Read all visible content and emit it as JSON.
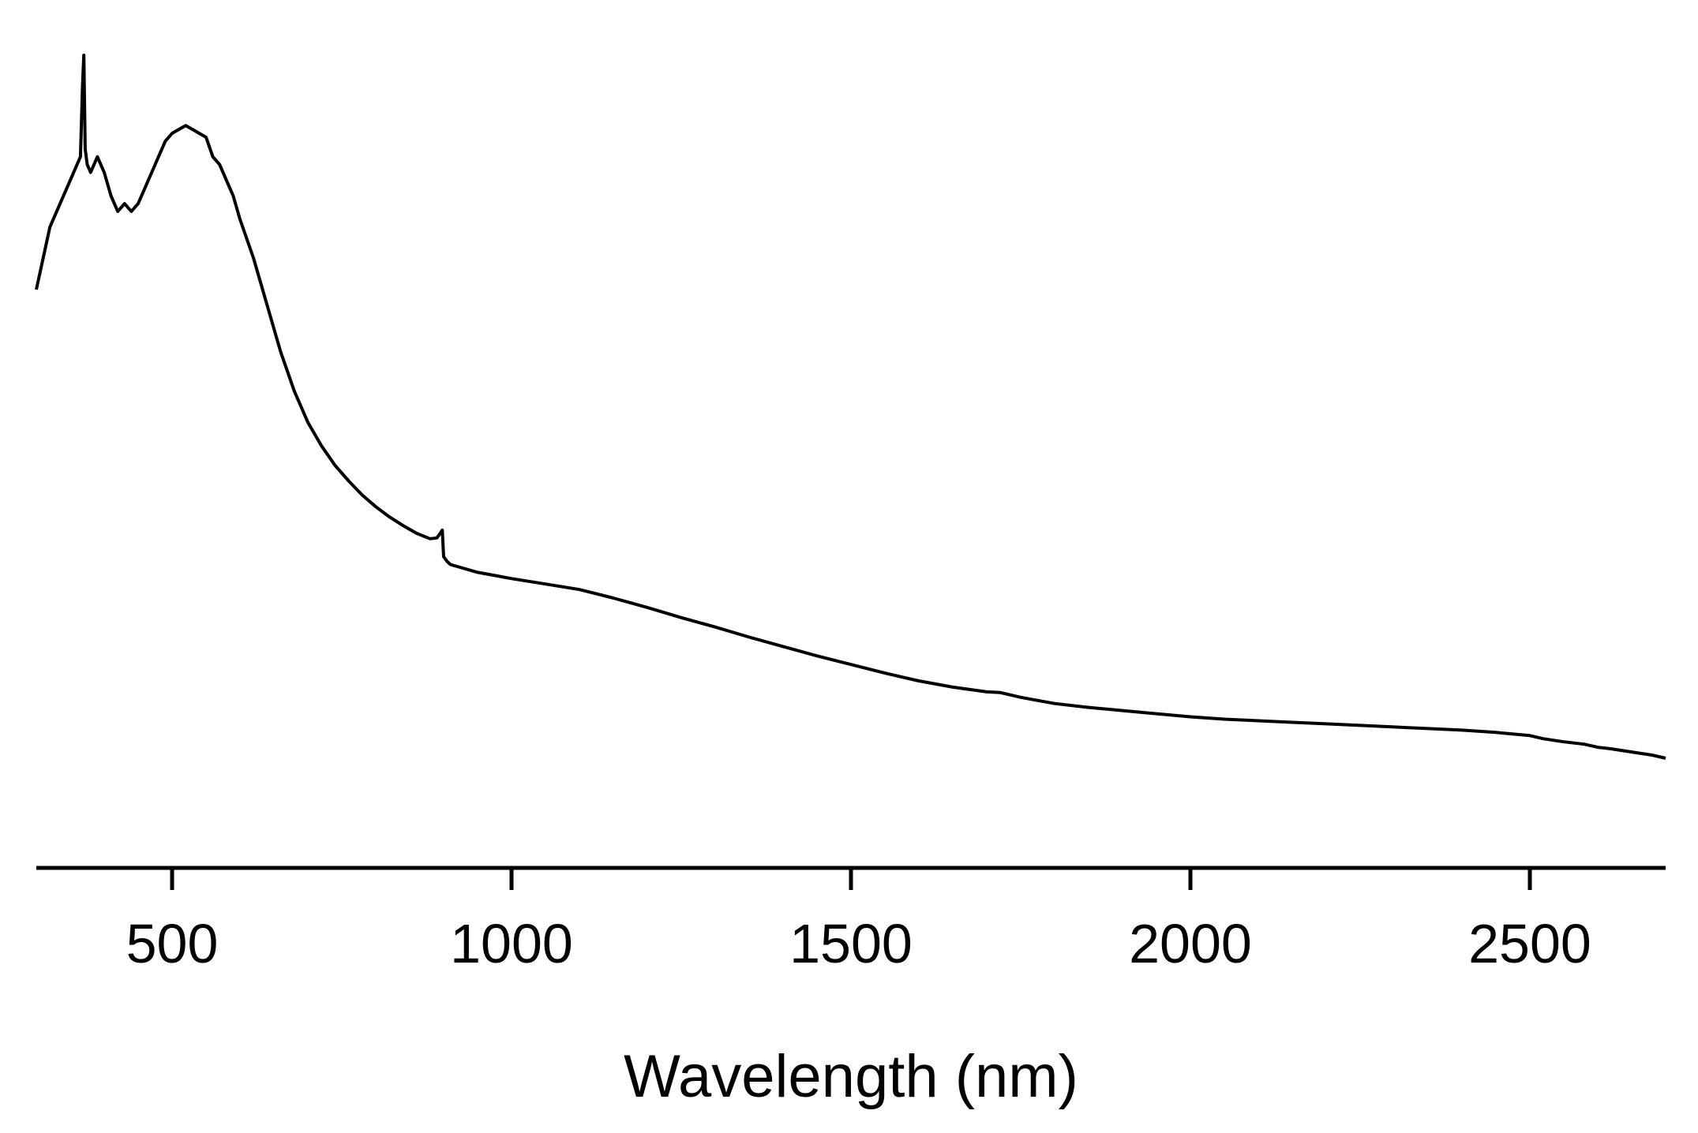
{
  "chart_data": {
    "type": "line",
    "title": "",
    "xlabel": "Wavelength (nm)",
    "ylabel": "",
    "xlim": [
      300,
      2700
    ],
    "ylim": [
      0,
      1
    ],
    "grid": false,
    "legend": "none",
    "x_ticks": [
      500,
      1000,
      1500,
      2000,
      2500
    ],
    "x_tick_labels": [
      "500",
      "1000",
      "1500",
      "2000",
      "2500"
    ],
    "y_axis_visible": false,
    "line_color": "#000000",
    "series": [
      {
        "x": [
          300,
          310,
          320,
          330,
          340,
          350,
          360,
          365,
          368,
          370,
          372,
          375,
          380,
          390,
          400,
          410,
          420,
          430,
          440,
          450,
          460,
          470,
          480,
          490,
          500,
          510,
          520,
          530,
          540,
          550,
          560,
          570,
          580,
          590,
          600,
          620,
          640,
          660,
          680,
          700,
          720,
          740,
          760,
          780,
          800,
          820,
          840,
          860,
          880,
          890,
          895,
          898,
          900,
          905,
          910,
          950,
          1000,
          1050,
          1100,
          1150,
          1200,
          1250,
          1300,
          1350,
          1400,
          1450,
          1500,
          1550,
          1600,
          1650,
          1700,
          1720,
          1750,
          1800,
          1850,
          1900,
          1950,
          2000,
          2050,
          2100,
          2150,
          2200,
          2250,
          2300,
          2350,
          2400,
          2450,
          2500,
          2520,
          2550,
          2580,
          2600,
          2620,
          2650,
          2680,
          2700
        ],
        "y": [
          0.7,
          0.74,
          0.78,
          0.8,
          0.82,
          0.84,
          0.86,
          0.87,
          0.96,
          1.0,
          0.88,
          0.86,
          0.85,
          0.87,
          0.85,
          0.82,
          0.8,
          0.81,
          0.8,
          0.81,
          0.83,
          0.85,
          0.87,
          0.89,
          0.9,
          0.905,
          0.91,
          0.905,
          0.9,
          0.895,
          0.87,
          0.86,
          0.84,
          0.82,
          0.79,
          0.74,
          0.68,
          0.62,
          0.57,
          0.53,
          0.5,
          0.475,
          0.455,
          0.437,
          0.422,
          0.409,
          0.398,
          0.388,
          0.381,
          0.382,
          0.388,
          0.392,
          0.358,
          0.352,
          0.348,
          0.338,
          0.33,
          0.323,
          0.316,
          0.305,
          0.293,
          0.28,
          0.268,
          0.255,
          0.243,
          0.231,
          0.22,
          0.209,
          0.199,
          0.191,
          0.185,
          0.184,
          0.178,
          0.17,
          0.165,
          0.161,
          0.157,
          0.153,
          0.15,
          0.148,
          0.146,
          0.144,
          0.142,
          0.14,
          0.138,
          0.136,
          0.133,
          0.129,
          0.125,
          0.121,
          0.118,
          0.114,
          0.112,
          0.108,
          0.104,
          0.1
        ]
      }
    ]
  }
}
